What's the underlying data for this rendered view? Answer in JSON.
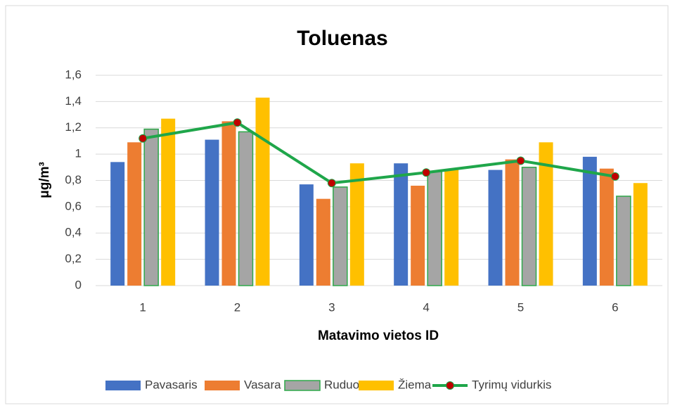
{
  "chart_data": {
    "type": "bar",
    "title": "Toluenas",
    "x_label": "Matavimo vietos ID",
    "y_label": "μg/m³",
    "categories": [
      "1",
      "2",
      "3",
      "4",
      "5",
      "6"
    ],
    "series": [
      {
        "name": "Pavasaris",
        "color": "#4472c4",
        "values": [
          0.94,
          1.11,
          0.77,
          0.93,
          0.88,
          0.98
        ]
      },
      {
        "name": "Vasara",
        "color": "#ed7d31",
        "values": [
          1.09,
          1.25,
          0.66,
          0.76,
          0.96,
          0.89
        ]
      },
      {
        "name": "Ruduo",
        "color": "#a5a5a5",
        "edge_color": "#2ea84a",
        "values": [
          1.19,
          1.17,
          0.75,
          0.87,
          0.9,
          0.68
        ]
      },
      {
        "name": "Žiema",
        "color": "#ffc000",
        "values": [
          1.27,
          1.43,
          0.93,
          0.88,
          1.09,
          0.78
        ]
      },
      {
        "name": "Tyrimų vidurkis",
        "type": "line",
        "color": "#1fa64a",
        "marker_color": "#c00000",
        "values": [
          1.12,
          1.24,
          0.78,
          0.86,
          0.95,
          0.83
        ]
      }
    ],
    "ylim": [
      0,
      1.6
    ],
    "yticks": [
      0,
      {
        "value": 0.2,
        "label": "0,2"
      },
      {
        "value": 0.4,
        "label": "0,4"
      },
      {
        "value": 0.6,
        "label": "0,6"
      },
      {
        "value": 0.8,
        "label": "0,8"
      },
      1,
      {
        "value": 1.2,
        "label": "1,2"
      },
      {
        "value": 1.4,
        "label": "1,4"
      },
      {
        "value": 1.6,
        "label": "1,6"
      }
    ],
    "grid": true,
    "legend": "bottom"
  }
}
